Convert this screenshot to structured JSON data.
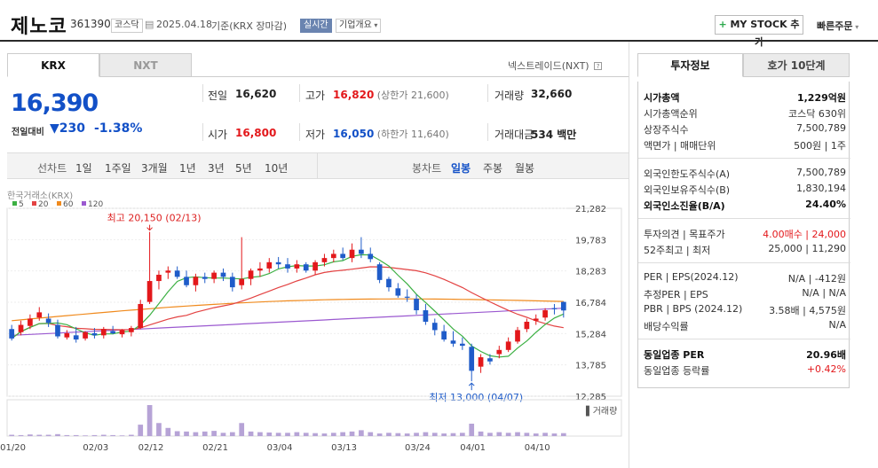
{
  "header": {
    "name": "제노코",
    "code": "361390",
    "market_tag": "코스닥",
    "date": "2025.04.18",
    "basis": "기준(KRX 장마감)",
    "realtime_tag": "실시간",
    "company_tag": "기업개요",
    "mystock": "MY STOCK 추가",
    "quick_order": "빠른주문"
  },
  "tabs": {
    "krx": "KRX",
    "nxt": "NXT",
    "nxt_link": "넥스트레이드(NXT)"
  },
  "price": {
    "current": "16,390",
    "diff_label": "전일대비",
    "diff": "230",
    "rate": "-1.38%"
  },
  "summary": [
    {
      "label": "전일",
      "value": "16,620"
    },
    {
      "label": "고가",
      "value": "16,820",
      "sub": "(상한가 21,600)"
    },
    {
      "label": "거래량",
      "value": "32,660"
    },
    {
      "label": "시가",
      "value": "16,800"
    },
    {
      "label": "저가",
      "value": "16,050",
      "sub": "(하한가 11,640)"
    },
    {
      "label": "거래대금",
      "value": "534",
      "unit": "백만"
    }
  ],
  "periods": {
    "line_label": "선차트",
    "line_items": [
      "1일",
      "1주일",
      "3개월",
      "1년",
      "3년",
      "5년",
      "10년"
    ],
    "candle_label": "봉차트",
    "candle_items": [
      "일봉",
      "주봉",
      "월봉"
    ]
  },
  "chart_data": {
    "type": "candlestick",
    "source": "한국거래소(KRX)",
    "legend": [
      {
        "name": "5",
        "color": "#3cb043"
      },
      {
        "name": "20",
        "color": "#e34242"
      },
      {
        "name": "60",
        "color": "#f08a1d"
      },
      {
        "name": "120",
        "color": "#9b59d0"
      }
    ],
    "y_ticks": [
      "21,282",
      "19,783",
      "18,283",
      "16,784",
      "15,284",
      "13,785",
      "12,285"
    ],
    "ylim": [
      12285,
      21282
    ],
    "x_labels": [
      "01/20",
      "02/03",
      "02/12",
      "02/21",
      "03/04",
      "03/13",
      "03/24",
      "04/01",
      "04/10"
    ],
    "x_label_index": [
      0,
      9,
      15,
      22,
      29,
      36,
      44,
      50,
      57
    ],
    "ohlc": [
      [
        15500,
        15700,
        14950,
        15050
      ],
      [
        15350,
        15900,
        15200,
        15700
      ],
      [
        15650,
        16200,
        15500,
        16000
      ],
      [
        16050,
        16550,
        15900,
        16300
      ],
      [
        16000,
        16250,
        15600,
        15800
      ],
      [
        15700,
        15950,
        15050,
        15150
      ],
      [
        15100,
        15450,
        15000,
        15300
      ],
      [
        15200,
        15600,
        14850,
        15000
      ],
      [
        15050,
        15400,
        14950,
        15350
      ],
      [
        15300,
        15550,
        15050,
        15200
      ],
      [
        15200,
        15600,
        15050,
        15500
      ],
      [
        15400,
        15650,
        15250,
        15300
      ],
      [
        15250,
        15500,
        15100,
        15450
      ],
      [
        15350,
        15650,
        15150,
        15550
      ],
      [
        15550,
        16900,
        15500,
        16700
      ],
      [
        16800,
        20150,
        16700,
        17800
      ],
      [
        17800,
        18300,
        17400,
        18100
      ],
      [
        18200,
        18500,
        17900,
        18300
      ],
      [
        18300,
        18500,
        17900,
        18000
      ],
      [
        18000,
        18300,
        17500,
        17600
      ],
      [
        17600,
        18150,
        17300,
        18000
      ],
      [
        18000,
        18200,
        17700,
        17900
      ],
      [
        17900,
        18300,
        17700,
        18200
      ],
      [
        18200,
        18400,
        17800,
        18000
      ],
      [
        18000,
        18200,
        17300,
        17500
      ],
      [
        17600,
        19900,
        17400,
        17900
      ],
      [
        17900,
        18400,
        17600,
        18300
      ],
      [
        18300,
        18700,
        18000,
        18400
      ],
      [
        18400,
        18900,
        18200,
        18700
      ],
      [
        18700,
        18950,
        18400,
        18600
      ],
      [
        18600,
        18900,
        18200,
        18400
      ],
      [
        18400,
        18800,
        18200,
        18600
      ],
      [
        18600,
        18700,
        18200,
        18300
      ],
      [
        18300,
        18800,
        18100,
        18700
      ],
      [
        18700,
        19100,
        18500,
        18900
      ],
      [
        18900,
        19300,
        18700,
        19100
      ],
      [
        19100,
        19400,
        18800,
        18900
      ],
      [
        18900,
        19600,
        18700,
        19300
      ],
      [
        19300,
        19900,
        18900,
        19100
      ],
      [
        19100,
        19400,
        18700,
        18850
      ],
      [
        18600,
        18700,
        17700,
        17850
      ],
      [
        17900,
        18000,
        17300,
        17500
      ],
      [
        17450,
        17700,
        17000,
        17100
      ],
      [
        17050,
        17400,
        16800,
        17000
      ],
      [
        16950,
        17150,
        16200,
        16400
      ],
      [
        16400,
        16700,
        15700,
        15850
      ],
      [
        15800,
        16000,
        15200,
        15450
      ],
      [
        15400,
        15700,
        14900,
        15000
      ],
      [
        14950,
        15400,
        14650,
        14800
      ],
      [
        14800,
        15100,
        14500,
        14700
      ],
      [
        14650,
        14800,
        13000,
        13500
      ],
      [
        13700,
        14300,
        13400,
        14150
      ],
      [
        14100,
        14300,
        13800,
        13950
      ],
      [
        14300,
        14700,
        14100,
        14500
      ],
      [
        14500,
        15100,
        14400,
        14900
      ],
      [
        14900,
        15600,
        14800,
        15450
      ],
      [
        15500,
        16000,
        15350,
        15850
      ],
      [
        15900,
        16200,
        15700,
        16000
      ],
      [
        16050,
        16500,
        15900,
        16400
      ],
      [
        16500,
        16700,
        16200,
        16450
      ],
      [
        16800,
        16820,
        16050,
        16390
      ]
    ],
    "volume": [
      4,
      3,
      5,
      4,
      4,
      6,
      3,
      3,
      2,
      3,
      4,
      3,
      2,
      4,
      35,
      95,
      40,
      25,
      15,
      14,
      12,
      14,
      16,
      10,
      12,
      40,
      14,
      12,
      11,
      10,
      10,
      12,
      10,
      9,
      8,
      10,
      12,
      14,
      18,
      12,
      8,
      10,
      9,
      8,
      10,
      12,
      10,
      8,
      9,
      10,
      38,
      14,
      10,
      12,
      10,
      12,
      10,
      8,
      10,
      8,
      9
    ],
    "annotations": {
      "high": "최고 20,150 (02/13)",
      "low": "최저 13,000 (04/07)",
      "volume_label": "거래량"
    }
  },
  "invest": {
    "tab1": "투자정보",
    "tab2": "호가 10단계",
    "groups": [
      [
        {
          "label": "시가총액",
          "value": "1,229억원",
          "bold": true
        },
        {
          "label": "시가총액순위",
          "value": "코스닥 630위"
        },
        {
          "label": "상장주식수",
          "value": "7,500,789"
        },
        {
          "label": "액면가 | 매매단위",
          "value": "500원 | 1주"
        }
      ],
      [
        {
          "label": "외국인한도주식수(A)",
          "value": "7,500,789"
        },
        {
          "label": "외국인보유주식수(B)",
          "value": "1,830,194"
        },
        {
          "label": "외국인소진율(B/A)",
          "value": "24.40%",
          "bold": true
        }
      ],
      [
        {
          "label": "투자의견 | 목표주가",
          "value": "4.00매수 | 24,000",
          "red": true
        },
        {
          "label": "52주최고 | 최저",
          "value": "25,000 | 11,290"
        }
      ],
      [
        {
          "label": "PER | EPS(2024.12)",
          "value": "N/A | -412원"
        },
        {
          "label": "추정PER | EPS",
          "value": "N/A | N/A"
        },
        {
          "label": "PBR | BPS (2024.12)",
          "value": "3.58배 | 4,575원"
        },
        {
          "label": "배당수익률",
          "value": "N/A"
        }
      ],
      [
        {
          "label": "동일업종 PER",
          "value": "20.96배",
          "bold": true
        },
        {
          "label": "동일업종 등락률",
          "value": "+0.42%",
          "red": true
        }
      ]
    ]
  }
}
